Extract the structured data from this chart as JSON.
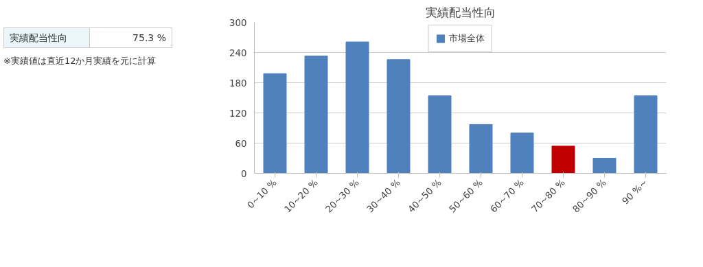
{
  "chart_data": {
    "type": "bar",
    "title": "実績配当性向",
    "categories": [
      "0~10 %",
      "10~20 %",
      "20~30 %",
      "30~40 %",
      "40~50 %",
      "50~60 %",
      "60~70 %",
      "70~80 %",
      "80~90 %",
      "90 %~"
    ],
    "series": [
      {
        "name": "市場全体",
        "color": "#4f81bd",
        "values": [
          198,
          233,
          261,
          226,
          154,
          97,
          80,
          null,
          30,
          154
        ]
      },
      {
        "color": "#c00000",
        "values": [
          null,
          null,
          null,
          null,
          null,
          null,
          null,
          54,
          null,
          null
        ]
      }
    ],
    "ylim": [
      0,
      300
    ],
    "yticks": [
      0,
      60,
      120,
      180,
      240,
      300
    ],
    "grid": "y",
    "legend": "top",
    "annotations": [
      "実績配当性向",
      "75.3 %",
      "※実績値は直近12か月実績を元に計算"
    ]
  }
}
